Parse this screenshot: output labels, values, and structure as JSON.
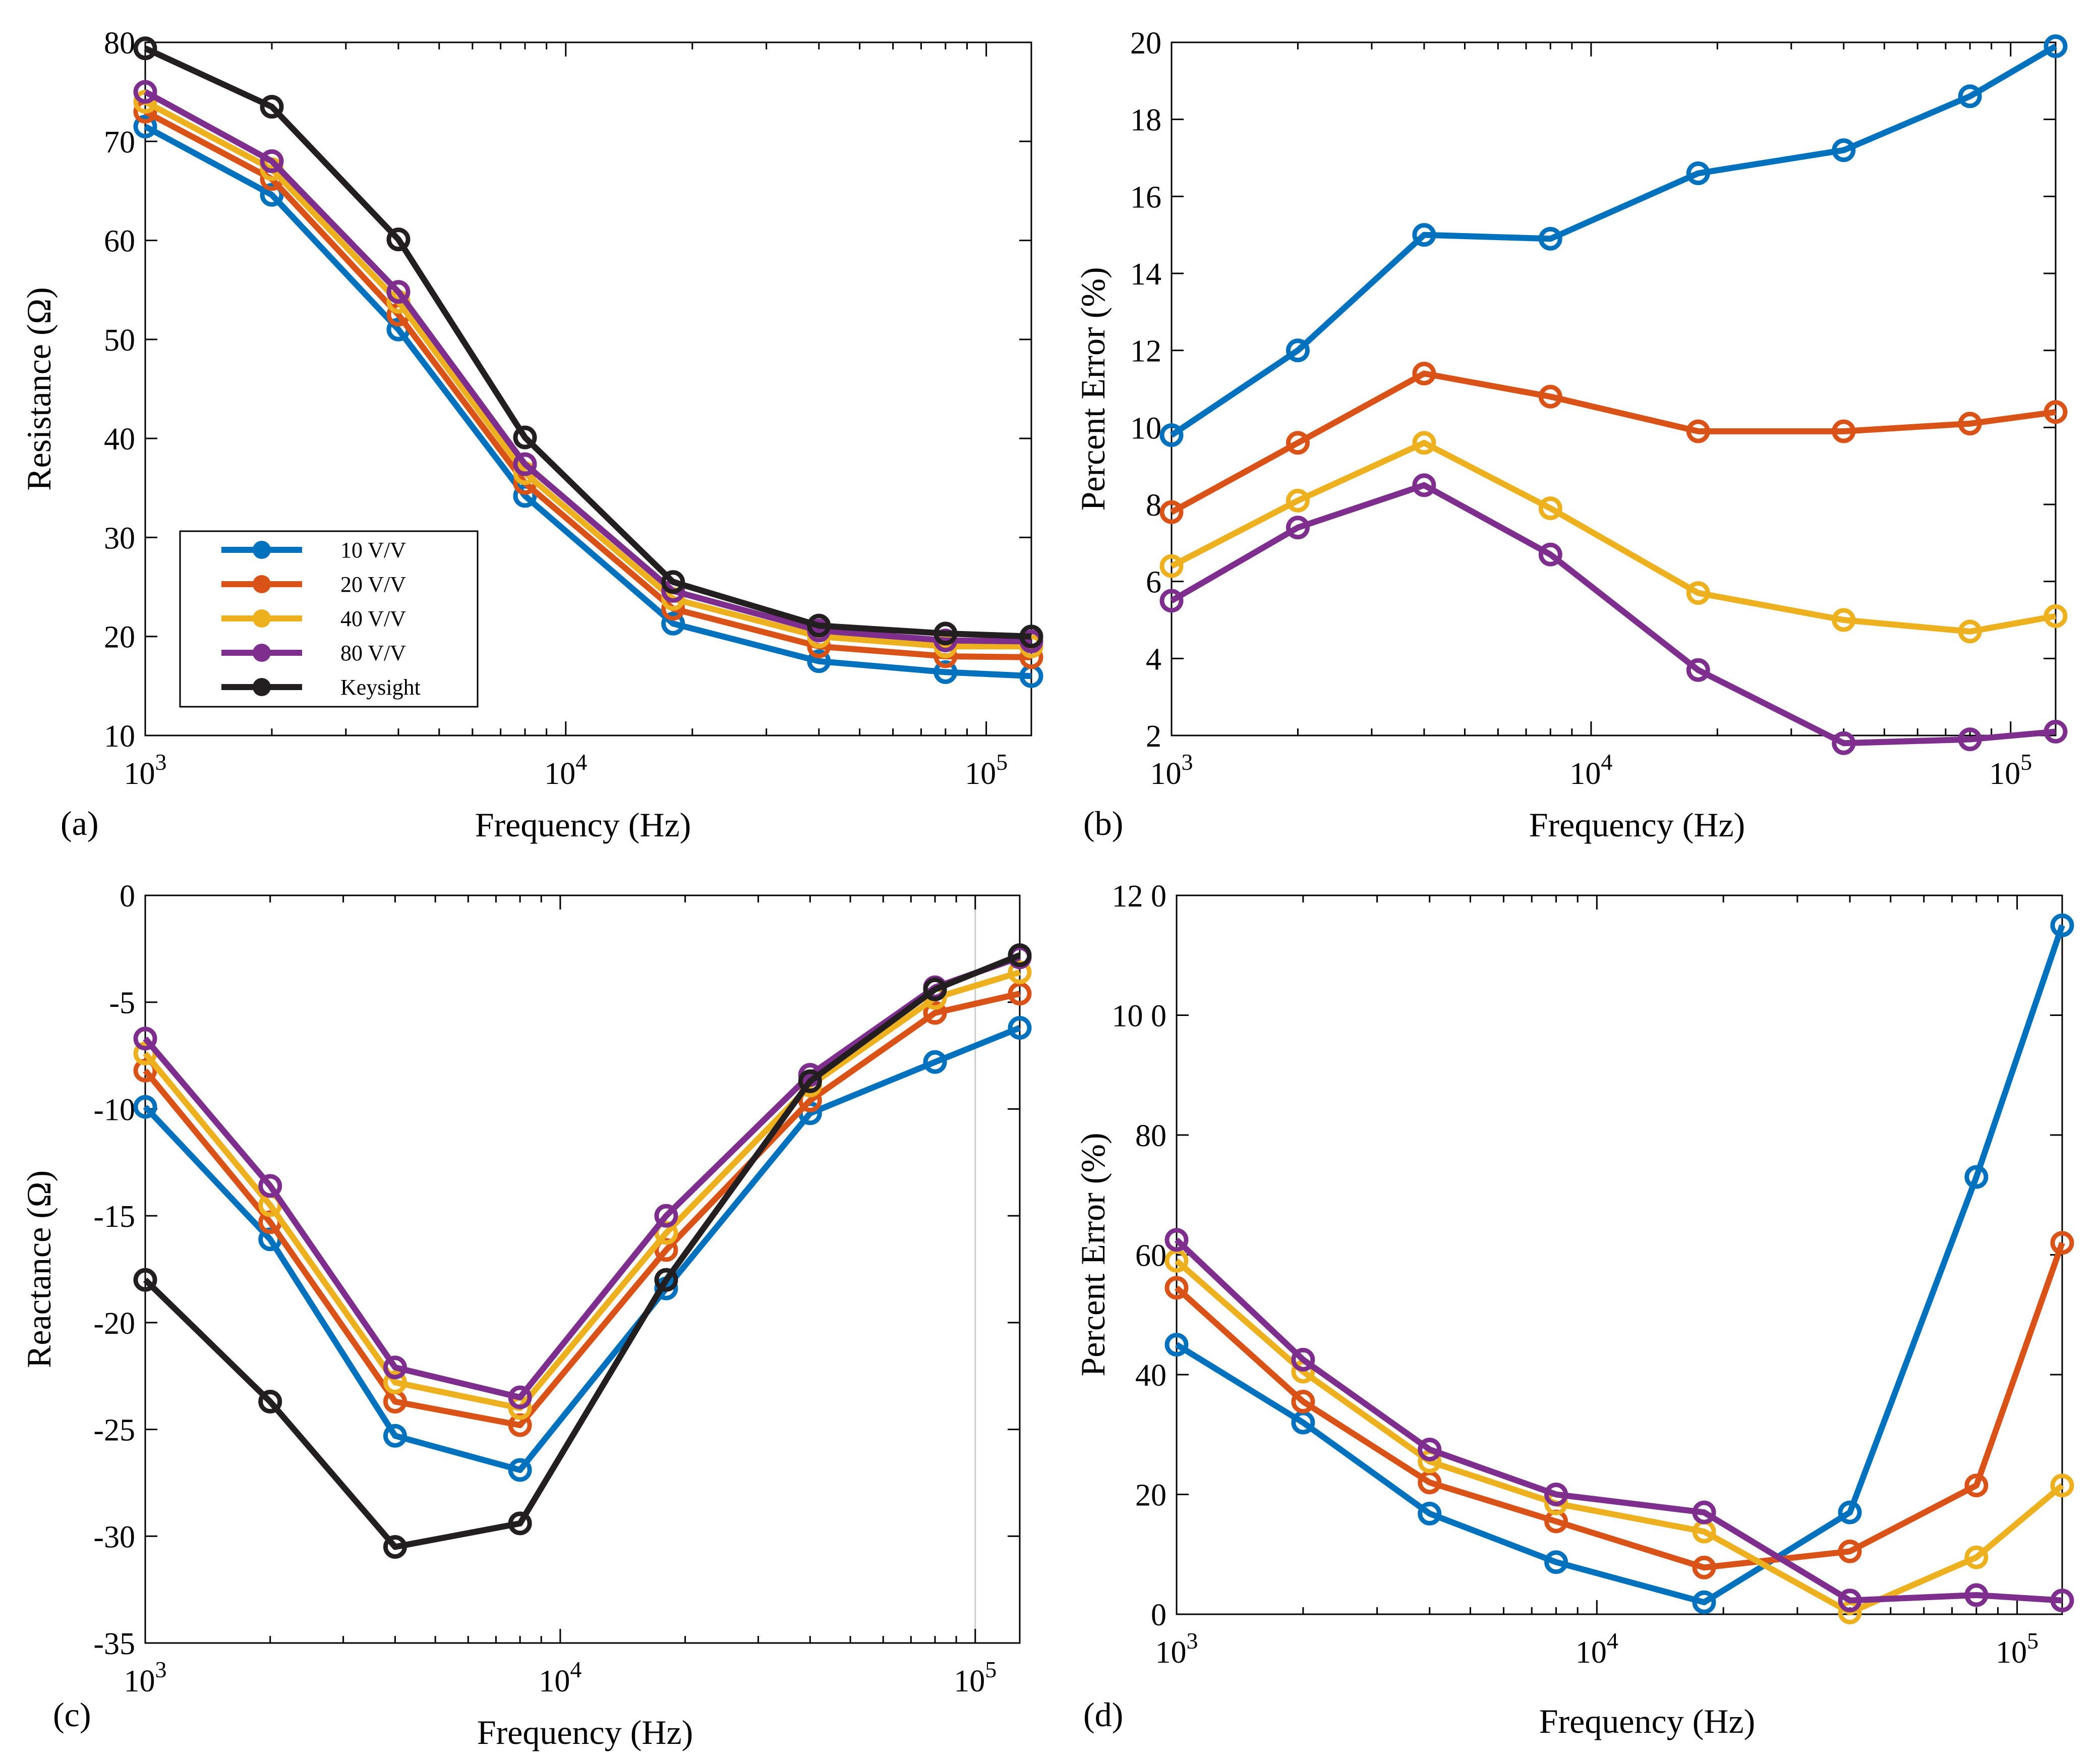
{
  "figure": {
    "colors": {
      "10 V/V": "#0072BD",
      "20 V/V": "#D95319",
      "40 V/V": "#EDB120",
      "80 V/V": "#7E2F8E",
      "Keysight": "#231F20"
    },
    "legend_font_size": 44
  },
  "chart_data": [
    {
      "type": "line",
      "panel_label": "(a)",
      "xlabel": "Frequency (Hz)",
      "ylabel": "Resistance (Ω)",
      "xscale": "log",
      "xlim": [
        1000,
        128000
      ],
      "ylim": [
        10,
        80
      ],
      "yticks": [
        10,
        20,
        30,
        40,
        50,
        60,
        70,
        80
      ],
      "ytick_labels": [
        "10",
        "20",
        "30",
        "40",
        "50",
        "60",
        "70",
        "80"
      ],
      "xticks": [
        1000,
        10000,
        100000
      ],
      "xtick_base": "10",
      "xtick_exponents": [
        "3",
        "4",
        "5"
      ],
      "legend": {
        "position": "lower-left",
        "entries": [
          "10 V/V",
          "20 V/V",
          "40 V/V",
          "80 V/V",
          "Keysight"
        ]
      },
      "x": [
        1000,
        2000,
        4000,
        8000,
        18000,
        40000,
        80000,
        128000
      ],
      "series": [
        {
          "name": "10 V/V",
          "values": [
            71.5,
            64.6,
            51.0,
            34.2,
            21.3,
            17.5,
            16.4,
            16.0
          ]
        },
        {
          "name": "20 V/V",
          "values": [
            73.0,
            66.2,
            52.5,
            35.5,
            22.8,
            19.0,
            18.0,
            17.9
          ]
        },
        {
          "name": "40 V/V",
          "values": [
            74.0,
            67.2,
            53.8,
            36.5,
            23.8,
            20.0,
            19.0,
            19.0
          ]
        },
        {
          "name": "80 V/V",
          "values": [
            75.0,
            68.0,
            54.8,
            37.4,
            24.6,
            20.6,
            19.6,
            19.5
          ]
        },
        {
          "name": "Keysight",
          "values": [
            79.4,
            73.5,
            60.1,
            40.1,
            25.5,
            21.1,
            20.3,
            20.0
          ]
        }
      ]
    },
    {
      "type": "line",
      "panel_label": "(b)",
      "xlabel": "Frequency (Hz)",
      "ylabel": "Percent Error (%)",
      "xscale": "log",
      "xlim": [
        1000,
        128000
      ],
      "ylim": [
        2,
        20
      ],
      "yticks": [
        2,
        4,
        6,
        8,
        10,
        12,
        14,
        16,
        18,
        20
      ],
      "ytick_labels": [
        "2",
        "4",
        "6",
        "8",
        "10",
        "12",
        "14",
        "16",
        "18",
        "20"
      ],
      "xticks": [
        1000,
        10000,
        100000
      ],
      "xtick_base": "10",
      "xtick_exponents": [
        "3",
        "4",
        "5"
      ],
      "x": [
        1000,
        2000,
        4000,
        8000,
        18000,
        40000,
        80000,
        128000
      ],
      "series": [
        {
          "name": "10 V/V",
          "values": [
            9.8,
            12.0,
            15.0,
            14.9,
            16.6,
            17.2,
            18.6,
            19.9
          ]
        },
        {
          "name": "20 V/V",
          "values": [
            7.8,
            9.6,
            11.4,
            10.8,
            9.9,
            9.9,
            10.1,
            10.4
          ]
        },
        {
          "name": "40 V/V",
          "values": [
            6.4,
            8.1,
            9.6,
            7.9,
            5.7,
            5.0,
            4.7,
            5.1
          ]
        },
        {
          "name": "80 V/V",
          "values": [
            5.5,
            7.4,
            8.5,
            6.7,
            3.7,
            1.8,
            1.9,
            2.1
          ]
        }
      ]
    },
    {
      "type": "line",
      "panel_label": "(c)",
      "xlabel": "Frequency (Hz)",
      "ylabel": "Reactance (Ω)",
      "xscale": "log",
      "xlim": [
        1000,
        128000
      ],
      "ylim": [
        -35,
        0
      ],
      "yticks": [
        -35,
        -30,
        -25,
        -20,
        -15,
        -10,
        -5,
        0
      ],
      "ytick_labels": [
        "-35",
        "-30",
        "-25",
        "-20",
        "-15",
        "-10",
        "-5",
        "0"
      ],
      "xticks": [
        1000,
        10000,
        100000
      ],
      "xtick_base": "10",
      "xtick_exponents": [
        "3",
        "4",
        "5"
      ],
      "x": [
        1000,
        2000,
        4000,
        8000,
        18000,
        40000,
        80000,
        128000
      ],
      "series": [
        {
          "name": "10 V/V",
          "values": [
            -9.9,
            -16.1,
            -25.3,
            -26.9,
            -18.4,
            -10.2,
            -7.8,
            -6.2
          ]
        },
        {
          "name": "20 V/V",
          "values": [
            -8.2,
            -15.3,
            -23.7,
            -24.8,
            -16.6,
            -9.6,
            -5.5,
            -4.6
          ]
        },
        {
          "name": "40 V/V",
          "values": [
            -7.4,
            -14.5,
            -22.8,
            -24.0,
            -15.8,
            -8.9,
            -4.8,
            -3.6
          ]
        },
        {
          "name": "80 V/V",
          "values": [
            -6.7,
            -13.6,
            -22.1,
            -23.5,
            -15.0,
            -8.4,
            -4.3,
            -2.9
          ]
        },
        {
          "name": "Keysight",
          "values": [
            -18.0,
            -23.7,
            -30.5,
            -29.4,
            -18.0,
            -8.7,
            -4.4,
            -2.8
          ]
        }
      ]
    },
    {
      "type": "line",
      "panel_label": "(d)",
      "xlabel": "Frequency (Hz)",
      "ylabel": "Percent Error (%)",
      "xscale": "log",
      "xlim": [
        1000,
        128000
      ],
      "ylim": [
        0,
        120
      ],
      "yticks": [
        0,
        20,
        40,
        60,
        80,
        100,
        120
      ],
      "ytick_labels": [
        "0",
        "20",
        "40",
        "60",
        "80",
        "10 0",
        "12 0"
      ],
      "xticks": [
        1000,
        10000,
        100000
      ],
      "xtick_base": "10",
      "xtick_exponents": [
        "3",
        "4",
        "5"
      ],
      "x": [
        1000,
        2000,
        4000,
        8000,
        18000,
        40000,
        80000,
        128000
      ],
      "series": [
        {
          "name": "10 V/V",
          "values": [
            45.0,
            32.0,
            16.8,
            8.7,
            2.0,
            17.0,
            73.0,
            115.0
          ]
        },
        {
          "name": "20 V/V",
          "values": [
            54.5,
            35.5,
            22.0,
            15.5,
            7.8,
            10.5,
            21.5,
            62.0
          ]
        },
        {
          "name": "40 V/V",
          "values": [
            59.0,
            40.5,
            25.5,
            18.5,
            13.8,
            0.3,
            9.5,
            21.5
          ]
        },
        {
          "name": "80 V/V",
          "values": [
            62.5,
            42.5,
            27.5,
            20.0,
            17.0,
            2.3,
            3.2,
            2.3
          ]
        }
      ]
    }
  ]
}
